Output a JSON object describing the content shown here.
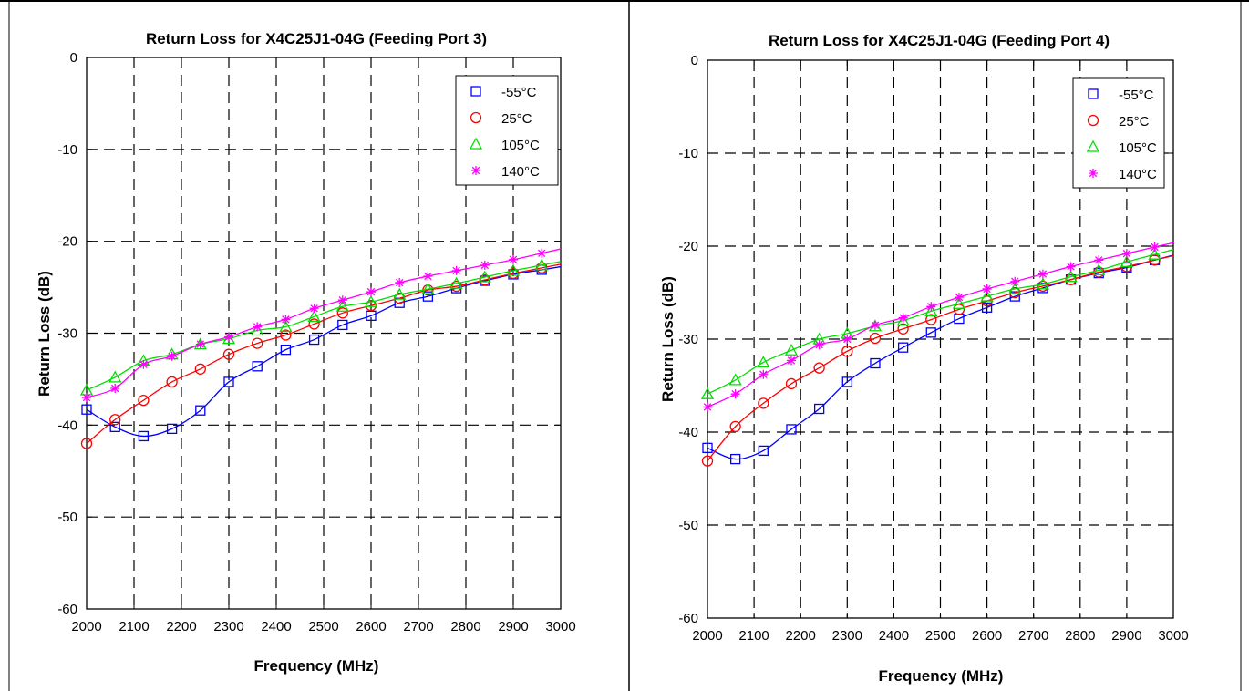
{
  "chart_data": [
    {
      "type": "line",
      "title": "Return Loss for X4C25J1-04G (Feeding Port 3)",
      "xlabel": "Frequency (MHz)",
      "ylabel": "Return Loss (dB)",
      "xlim": [
        2000,
        3000
      ],
      "ylim": [
        -60,
        0
      ],
      "xticks": [
        "2000",
        "2100",
        "2200",
        "2300",
        "2400",
        "2500",
        "2600",
        "2700",
        "2800",
        "2900",
        "3000"
      ],
      "yticks": [
        "0",
        "-10",
        "-20",
        "-30",
        "-40",
        "-50",
        "-60"
      ],
      "grid": true,
      "legend_position": "top-right",
      "x": [
        2000,
        2060,
        2120,
        2180,
        2240,
        2300,
        2360,
        2420,
        2480,
        2540,
        2600,
        2660,
        2720,
        2780,
        2840,
        2900,
        2960
      ],
      "series": [
        {
          "name": "-55°C",
          "color": "#0000ff",
          "marker": "square",
          "values": [
            -38.3,
            -40.2,
            -41.2,
            -40.4,
            -38.4,
            -35.3,
            -33.6,
            -31.8,
            -30.7,
            -29.1,
            -28.1,
            -26.7,
            -26.0,
            -25.1,
            -24.3,
            -23.6,
            -23.1
          ]
        },
        {
          "name": "25°C",
          "color": "#ff0000",
          "marker": "circle",
          "values": [
            -42.0,
            -39.4,
            -37.3,
            -35.3,
            -33.9,
            -32.3,
            -31.1,
            -30.2,
            -29.0,
            -27.8,
            -27.0,
            -26.2,
            -25.3,
            -24.9,
            -24.2,
            -23.5,
            -22.9
          ]
        },
        {
          "name": "105°C",
          "color": "#00dd00",
          "marker": "triangle",
          "values": [
            -36.2,
            -34.8,
            -33.0,
            -32.3,
            -31.2,
            -30.6,
            -29.7,
            -29.3,
            -28.2,
            -27.1,
            -26.6,
            -25.8,
            -25.2,
            -24.6,
            -23.9,
            -23.2,
            -22.6
          ]
        },
        {
          "name": "140°C",
          "color": "#ff00ff",
          "marker": "star",
          "values": [
            -37.0,
            -36.0,
            -33.4,
            -32.5,
            -31.2,
            -30.4,
            -29.3,
            -28.5,
            -27.3,
            -26.4,
            -25.5,
            -24.5,
            -23.8,
            -23.2,
            -22.6,
            -22.0,
            -21.3
          ]
        }
      ]
    },
    {
      "type": "line",
      "title": "Return Loss for X4C25J1-04G (Feeding Port 4)",
      "xlabel": "Frequency (MHz)",
      "ylabel": "Return Loss (dB)",
      "xlim": [
        2000,
        3000
      ],
      "ylim": [
        -60,
        0
      ],
      "xticks": [
        "2000",
        "2100",
        "2200",
        "2300",
        "2400",
        "2500",
        "2600",
        "2700",
        "2800",
        "2900",
        "3000"
      ],
      "yticks": [
        "0",
        "-10",
        "-20",
        "-30",
        "-40",
        "-50",
        "-60"
      ],
      "grid": true,
      "legend_position": "top-right",
      "x": [
        2000,
        2060,
        2120,
        2180,
        2240,
        2300,
        2360,
        2420,
        2480,
        2540,
        2600,
        2660,
        2720,
        2780,
        2840,
        2900,
        2960
      ],
      "series": [
        {
          "name": "-55°C",
          "color": "#0000ff",
          "marker": "square",
          "values": [
            -41.7,
            -42.9,
            -42.0,
            -39.7,
            -37.5,
            -34.6,
            -32.6,
            -30.9,
            -29.3,
            -27.8,
            -26.6,
            -25.4,
            -24.5,
            -23.6,
            -22.9,
            -22.3,
            -21.5
          ]
        },
        {
          "name": "25°C",
          "color": "#ff0000",
          "marker": "circle",
          "values": [
            -43.1,
            -39.4,
            -36.9,
            -34.8,
            -33.1,
            -31.3,
            -29.9,
            -28.9,
            -27.9,
            -26.8,
            -25.9,
            -25.0,
            -24.3,
            -23.6,
            -22.8,
            -22.2,
            -21.5
          ]
        },
        {
          "name": "105°C",
          "color": "#00dd00",
          "marker": "triangle",
          "values": [
            -35.9,
            -34.4,
            -32.5,
            -31.2,
            -30.0,
            -29.4,
            -28.6,
            -28.0,
            -27.0,
            -26.2,
            -25.4,
            -24.6,
            -24.1,
            -23.3,
            -22.6,
            -21.7,
            -20.9
          ]
        },
        {
          "name": "140°C",
          "color": "#ff00ff",
          "marker": "star",
          "values": [
            -37.3,
            -35.9,
            -33.8,
            -32.3,
            -30.6,
            -30.0,
            -28.5,
            -27.7,
            -26.5,
            -25.5,
            -24.6,
            -23.8,
            -23.0,
            -22.2,
            -21.5,
            -20.8,
            -20.1
          ]
        }
      ]
    }
  ]
}
